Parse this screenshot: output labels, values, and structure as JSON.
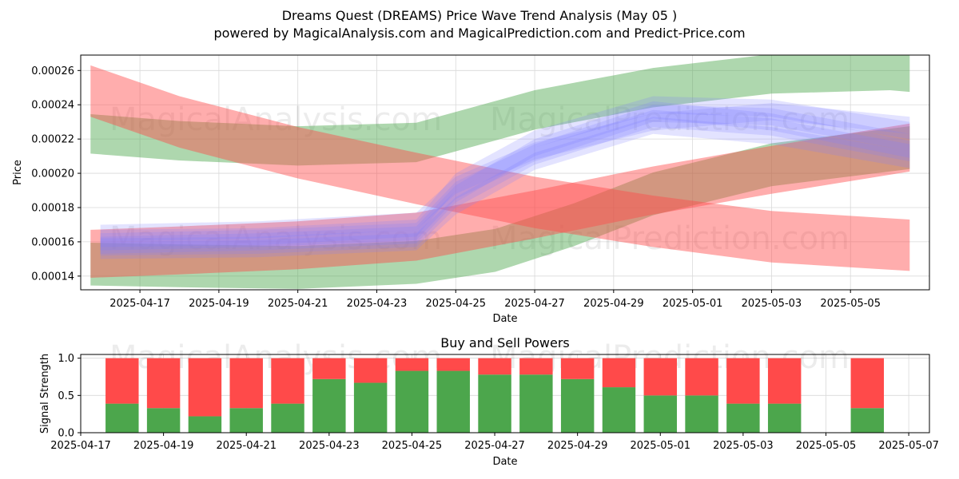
{
  "titles": {
    "line1": "Dreams Quest (DREAMS) Price Wave Trend Analysis (May 05 )",
    "line2": "powered by MagicalAnalysis.com and MagicalPrediction.com and Predict-Price.com"
  },
  "watermarks": {
    "magical_analysis": "MagicalAnalysis.com",
    "magical_prediction": "MagicalPrediction.com"
  },
  "colors": {
    "green": "#4ca64c",
    "red": "#ff4a4a",
    "blue": "#7f7fff",
    "grid": "#d9d9d9"
  },
  "chart_data": [
    {
      "type": "area",
      "title": "",
      "xlabel": "Date",
      "ylabel": "Price",
      "x_range": [
        "2025-04-15T12:00",
        "2025-05-07T00:00"
      ],
      "ylim": [
        0.000132,
        0.000269
      ],
      "x_ticks": [
        "2025-04-17",
        "2025-04-19",
        "2025-04-21",
        "2025-04-23",
        "2025-04-25",
        "2025-04-27",
        "2025-04-29",
        "2025-05-01",
        "2025-05-03",
        "2025-05-05"
      ],
      "y_ticks": [
        0.00014,
        0.00016,
        0.00018,
        0.0002,
        0.00022,
        0.00024,
        0.00026
      ],
      "y_tick_labels": [
        "0.00014",
        "0.00016",
        "0.00018",
        "0.00020",
        "0.00022",
        "0.00024",
        "0.00026"
      ],
      "grid": true,
      "bands": [
        {
          "color": "green",
          "opacity": 0.45,
          "x": [
            "2025-04-15T18:00",
            "2025-04-18T00:00",
            "2025-04-21T00:00",
            "2025-04-24T00:00",
            "2025-04-27T00:00",
            "2025-04-30T00:00",
            "2025-05-03T00:00",
            "2025-05-06T00:00",
            "2025-05-06T12:00"
          ],
          "center": [
            0.000223,
            0.000219,
            0.000216,
            0.000218,
            0.000237,
            0.00025,
            0.000258,
            0.00026,
            0.000259
          ],
          "width": 2.3e-05
        },
        {
          "color": "green",
          "opacity": 0.45,
          "x": [
            "2025-04-15T18:00",
            "2025-04-18T00:00",
            "2025-04-21T00:00",
            "2025-04-24T00:00",
            "2025-04-26T00:00",
            "2025-04-28T00:00",
            "2025-04-30T00:00",
            "2025-05-03T00:00",
            "2025-05-06T12:00"
          ],
          "center": [
            0.000147,
            0.000146,
            0.000145,
            0.000148,
            0.000155,
            0.00017,
            0.000188,
            0.000205,
            0.000215
          ],
          "width": 2.5e-05
        },
        {
          "color": "red",
          "opacity": 0.45,
          "x": [
            "2025-04-15T18:00",
            "2025-04-18T00:00",
            "2025-04-21T00:00",
            "2025-04-24T00:00",
            "2025-04-27T00:00",
            "2025-04-30T00:00",
            "2025-05-03T00:00",
            "2025-05-06T12:00"
          ],
          "center": [
            0.000248,
            0.00023,
            0.000212,
            0.000197,
            0.000183,
            0.000172,
            0.000163,
            0.000158
          ],
          "width": 3e-05
        },
        {
          "color": "red",
          "opacity": 0.45,
          "x": [
            "2025-04-15T18:00",
            "2025-04-18T00:00",
            "2025-04-21T00:00",
            "2025-04-24T00:00",
            "2025-04-27T00:00",
            "2025-04-30T00:00",
            "2025-05-03T00:00",
            "2025-05-06T12:00"
          ],
          "center": [
            0.000153,
            0.000155,
            0.000158,
            0.000163,
            0.000176,
            0.00019,
            0.000202,
            0.000215
          ],
          "width": 2.8e-05
        },
        {
          "color": "blue",
          "opacity": 0.22,
          "x": [
            "2025-04-16T00:00",
            "2025-04-20T00:00",
            "2025-04-24T00:00",
            "2025-04-25T00:00",
            "2025-04-27T00:00",
            "2025-04-30T00:00",
            "2025-05-03T00:00",
            "2025-05-06T12:00"
          ],
          "center": [
            0.000165,
            0.000167,
            0.000172,
            0.000193,
            0.000213,
            0.00023,
            0.000236,
            0.000228
          ],
          "width": 1e-05
        },
        {
          "color": "blue",
          "opacity": 0.22,
          "x": [
            "2025-04-16T00:00",
            "2025-04-20T00:00",
            "2025-04-24T00:00",
            "2025-04-25T00:00",
            "2025-04-27T00:00",
            "2025-04-30T00:00",
            "2025-05-03T00:00",
            "2025-05-06T12:00"
          ],
          "center": [
            0.00016,
            0.000162,
            0.000166,
            0.00019,
            0.000212,
            0.000235,
            0.000233,
            0.000218
          ],
          "width": 1e-05
        },
        {
          "color": "blue",
          "opacity": 0.22,
          "x": [
            "2025-04-16T00:00",
            "2025-04-20T00:00",
            "2025-04-24T00:00",
            "2025-04-25T00:00",
            "2025-04-27T00:00",
            "2025-04-30T00:00",
            "2025-05-03T00:00",
            "2025-05-06T12:00"
          ],
          "center": [
            0.000157,
            0.000158,
            0.000162,
            0.000185,
            0.00021,
            0.000232,
            0.000227,
            0.000212
          ],
          "width": 1e-05
        },
        {
          "color": "blue",
          "opacity": 0.22,
          "x": [
            "2025-04-16T00:00",
            "2025-04-20T00:00",
            "2025-04-24T00:00",
            "2025-04-25T00:00",
            "2025-04-27T00:00",
            "2025-04-30T00:00",
            "2025-05-03T00:00",
            "2025-05-06T12:00"
          ],
          "center": [
            0.000155,
            0.000156,
            0.00016,
            0.000181,
            0.000207,
            0.000228,
            0.000222,
            0.000208
          ],
          "width": 1e-05
        },
        {
          "color": "blue",
          "opacity": 0.22,
          "x": [
            "2025-04-16T00:00",
            "2025-04-20T00:00",
            "2025-04-24T00:00",
            "2025-04-25T00:00",
            "2025-04-27T00:00",
            "2025-04-30T00:00",
            "2025-05-03T00:00",
            "2025-05-06T12:00"
          ],
          "center": [
            0.000162,
            0.000163,
            0.000168,
            0.000195,
            0.00022,
            0.00024,
            0.000238,
            0.000225
          ],
          "width": 1e-05
        },
        {
          "color": "blue",
          "opacity": 0.22,
          "x": [
            "2025-04-16T00:00",
            "2025-04-20T00:00",
            "2025-04-24T00:00",
            "2025-04-25T00:00",
            "2025-04-27T00:00",
            "2025-04-30T00:00",
            "2025-05-03T00:00",
            "2025-05-06T12:00"
          ],
          "center": [
            0.000158,
            0.00016,
            0.000164,
            0.000188,
            0.000215,
            0.000237,
            0.00023,
            0.000214
          ],
          "width": 1e-05
        }
      ]
    },
    {
      "type": "bar",
      "title": "Buy and Sell Powers",
      "xlabel": "Date",
      "ylabel": "Signal Strength",
      "ylim": [
        0,
        1.05
      ],
      "x_range": [
        "2025-04-17T00:00",
        "2025-05-07T12:00"
      ],
      "x_ticks": [
        "2025-04-17",
        "2025-04-19",
        "2025-04-21",
        "2025-04-23",
        "2025-04-25",
        "2025-04-27",
        "2025-04-29",
        "2025-05-01",
        "2025-05-03",
        "2025-05-05",
        "2025-05-07"
      ],
      "y_ticks": [
        0.0,
        0.5,
        1.0
      ],
      "y_tick_labels": [
        "0.0",
        "0.5",
        "1.0"
      ],
      "grid": true,
      "categories": [
        "2025-04-18",
        "2025-04-19",
        "2025-04-20",
        "2025-04-21",
        "2025-04-22",
        "2025-04-23",
        "2025-04-24",
        "2025-04-25",
        "2025-04-26",
        "2025-04-27",
        "2025-04-28",
        "2025-04-29",
        "2025-04-30",
        "2025-05-01",
        "2025-05-02",
        "2025-05-03",
        "2025-05-04",
        "2025-05-06"
      ],
      "series": [
        {
          "name": "Buy",
          "color": "green",
          "values": [
            0.39,
            0.33,
            0.22,
            0.33,
            0.39,
            0.72,
            0.67,
            0.83,
            0.83,
            0.78,
            0.78,
            0.72,
            0.61,
            0.5,
            0.5,
            0.39,
            0.39,
            0.33
          ]
        },
        {
          "name": "Sell",
          "color": "red",
          "values": [
            0.61,
            0.67,
            0.78,
            0.67,
            0.61,
            0.28,
            0.33,
            0.17,
            0.17,
            0.22,
            0.22,
            0.28,
            0.39,
            0.5,
            0.5,
            0.61,
            0.61,
            0.67
          ]
        }
      ]
    }
  ]
}
